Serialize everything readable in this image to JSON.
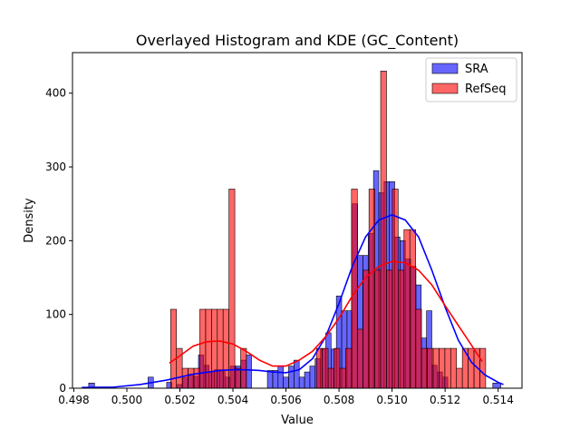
{
  "chart_data": {
    "type": "histogram",
    "title": "Overlayed Histogram and KDE (GC_Content)",
    "xlabel": "Value",
    "ylabel": "Density",
    "xlim": [
      0.49795,
      0.5149
    ],
    "ylim": [
      0,
      455
    ],
    "x_ticks": [
      0.498,
      0.5,
      0.502,
      0.504,
      0.506,
      0.508,
      0.51,
      0.512,
      0.514
    ],
    "x_tick_labels": [
      "0.498",
      "0.500",
      "0.502",
      "0.504",
      "0.506",
      "0.508",
      "0.510",
      "0.512",
      "0.514"
    ],
    "y_ticks": [
      0,
      100,
      200,
      300,
      400
    ],
    "y_tick_labels": [
      "0",
      "100",
      "200",
      "300",
      "400"
    ],
    "grid": false,
    "legend_position": "top-right",
    "series": [
      {
        "name": "SRA",
        "color": "#0000ff",
        "bins": [
          [
            0.49856,
            0.49878,
            7
          ],
          [
            0.5008,
            0.501,
            15
          ],
          [
            0.5015,
            0.5017,
            8
          ],
          [
            0.5019,
            0.5021,
            5
          ],
          [
            0.5021,
            0.5023,
            14
          ],
          [
            0.5023,
            0.5025,
            19
          ],
          [
            0.5025,
            0.5027,
            16
          ],
          [
            0.5027,
            0.5029,
            45
          ],
          [
            0.5029,
            0.5031,
            31
          ],
          [
            0.5031,
            0.5033,
            22
          ],
          [
            0.5033,
            0.5035,
            25
          ],
          [
            0.5035,
            0.5037,
            25
          ],
          [
            0.5037,
            0.5039,
            15
          ],
          [
            0.5039,
            0.5041,
            30
          ],
          [
            0.5041,
            0.5043,
            30
          ],
          [
            0.5043,
            0.5045,
            38
          ],
          [
            0.5045,
            0.5047,
            45
          ],
          [
            0.5053,
            0.5055,
            24
          ],
          [
            0.5055,
            0.5057,
            24
          ],
          [
            0.5057,
            0.5059,
            30
          ],
          [
            0.5059,
            0.5061,
            15
          ],
          [
            0.5061,
            0.5063,
            30
          ],
          [
            0.5063,
            0.5065,
            38
          ],
          [
            0.5065,
            0.5067,
            15
          ],
          [
            0.5067,
            0.5069,
            22
          ],
          [
            0.5069,
            0.5071,
            30
          ],
          [
            0.5071,
            0.5073,
            40
          ],
          [
            0.5073,
            0.5075,
            53
          ],
          [
            0.5075,
            0.5077,
            75
          ],
          [
            0.5077,
            0.5079,
            53
          ],
          [
            0.5079,
            0.5081,
            125
          ],
          [
            0.5081,
            0.5083,
            105
          ],
          [
            0.5083,
            0.5085,
            105
          ],
          [
            0.5085,
            0.5087,
            250
          ],
          [
            0.5087,
            0.5089,
            180
          ],
          [
            0.5089,
            0.5091,
            180
          ],
          [
            0.5091,
            0.5093,
            210
          ],
          [
            0.5093,
            0.5095,
            295
          ],
          [
            0.5095,
            0.5097,
            265
          ],
          [
            0.5097,
            0.5099,
            280
          ],
          [
            0.5099,
            0.5101,
            280
          ],
          [
            0.5101,
            0.5103,
            205
          ],
          [
            0.5103,
            0.5105,
            200
          ],
          [
            0.5105,
            0.5107,
            175
          ],
          [
            0.5107,
            0.5109,
            165
          ],
          [
            0.5109,
            0.5111,
            140
          ],
          [
            0.5111,
            0.5113,
            68
          ],
          [
            0.5113,
            0.5115,
            105
          ],
          [
            0.5115,
            0.5117,
            31
          ],
          [
            0.5117,
            0.5119,
            22
          ],
          [
            0.5119,
            0.5121,
            15
          ],
          [
            0.5138,
            0.5141,
            7
          ]
        ],
        "kde": [
          [
            0.4983,
            1
          ],
          [
            0.4995,
            1.5
          ],
          [
            0.5005,
            5
          ],
          [
            0.5015,
            11
          ],
          [
            0.5025,
            19
          ],
          [
            0.5035,
            24
          ],
          [
            0.504,
            25
          ],
          [
            0.5045,
            25
          ],
          [
            0.505,
            24
          ],
          [
            0.5055,
            22
          ],
          [
            0.506,
            21
          ],
          [
            0.5065,
            25
          ],
          [
            0.507,
            40
          ],
          [
            0.5075,
            70
          ],
          [
            0.508,
            115
          ],
          [
            0.5085,
            165
          ],
          [
            0.509,
            205
          ],
          [
            0.5095,
            228
          ],
          [
            0.51,
            235
          ],
          [
            0.5105,
            228
          ],
          [
            0.511,
            205
          ],
          [
            0.5115,
            160
          ],
          [
            0.512,
            110
          ],
          [
            0.5125,
            65
          ],
          [
            0.513,
            35
          ],
          [
            0.5135,
            18
          ],
          [
            0.514,
            8
          ],
          [
            0.5142,
            5
          ]
        ]
      },
      {
        "name": "RefSeq",
        "color": "#ff0000",
        "bins": [
          [
            0.50165,
            0.50187,
            107
          ],
          [
            0.50187,
            0.50209,
            54
          ],
          [
            0.50209,
            0.50231,
            27
          ],
          [
            0.50231,
            0.50253,
            27
          ],
          [
            0.50253,
            0.50275,
            27
          ],
          [
            0.50275,
            0.50297,
            107
          ],
          [
            0.50297,
            0.50319,
            107
          ],
          [
            0.50319,
            0.50341,
            107
          ],
          [
            0.50341,
            0.50363,
            107
          ],
          [
            0.50363,
            0.50385,
            107
          ],
          [
            0.50385,
            0.50407,
            270
          ],
          [
            0.50407,
            0.50429,
            27
          ],
          [
            0.50429,
            0.50451,
            54
          ],
          [
            0.50715,
            0.50737,
            54
          ],
          [
            0.50737,
            0.50759,
            54
          ],
          [
            0.50759,
            0.50781,
            27
          ],
          [
            0.50781,
            0.50803,
            54
          ],
          [
            0.50803,
            0.50825,
            27
          ],
          [
            0.50825,
            0.50847,
            54
          ],
          [
            0.50847,
            0.50869,
            270
          ],
          [
            0.50869,
            0.50891,
            80
          ],
          [
            0.50891,
            0.50913,
            160
          ],
          [
            0.50913,
            0.50935,
            270
          ],
          [
            0.50935,
            0.50957,
            160
          ],
          [
            0.50957,
            0.50979,
            430
          ],
          [
            0.50979,
            0.51001,
            160
          ],
          [
            0.51001,
            0.51023,
            270
          ],
          [
            0.51023,
            0.51045,
            160
          ],
          [
            0.51045,
            0.51067,
            215
          ],
          [
            0.51067,
            0.51089,
            215
          ],
          [
            0.51089,
            0.51111,
            107
          ],
          [
            0.51111,
            0.51133,
            54
          ],
          [
            0.51133,
            0.51155,
            54
          ],
          [
            0.51155,
            0.51177,
            54
          ],
          [
            0.51177,
            0.51199,
            54
          ],
          [
            0.51199,
            0.51221,
            54
          ],
          [
            0.51221,
            0.51243,
            54
          ],
          [
            0.51243,
            0.51265,
            27
          ],
          [
            0.51265,
            0.51287,
            54
          ],
          [
            0.51287,
            0.51309,
            54
          ],
          [
            0.51309,
            0.51331,
            54
          ],
          [
            0.51331,
            0.51353,
            54
          ]
        ],
        "kde": [
          [
            0.5016,
            34
          ],
          [
            0.502,
            44
          ],
          [
            0.5025,
            57
          ],
          [
            0.503,
            63
          ],
          [
            0.5035,
            64
          ],
          [
            0.504,
            60
          ],
          [
            0.5045,
            50
          ],
          [
            0.505,
            38
          ],
          [
            0.5055,
            30
          ],
          [
            0.506,
            30
          ],
          [
            0.5065,
            38
          ],
          [
            0.507,
            50
          ],
          [
            0.5075,
            70
          ],
          [
            0.508,
            95
          ],
          [
            0.5085,
            125
          ],
          [
            0.509,
            150
          ],
          [
            0.5095,
            165
          ],
          [
            0.51,
            172
          ],
          [
            0.5105,
            170
          ],
          [
            0.511,
            160
          ],
          [
            0.5115,
            140
          ],
          [
            0.512,
            112
          ],
          [
            0.5125,
            85
          ],
          [
            0.513,
            58
          ],
          [
            0.5134,
            36
          ]
        ]
      }
    ]
  }
}
